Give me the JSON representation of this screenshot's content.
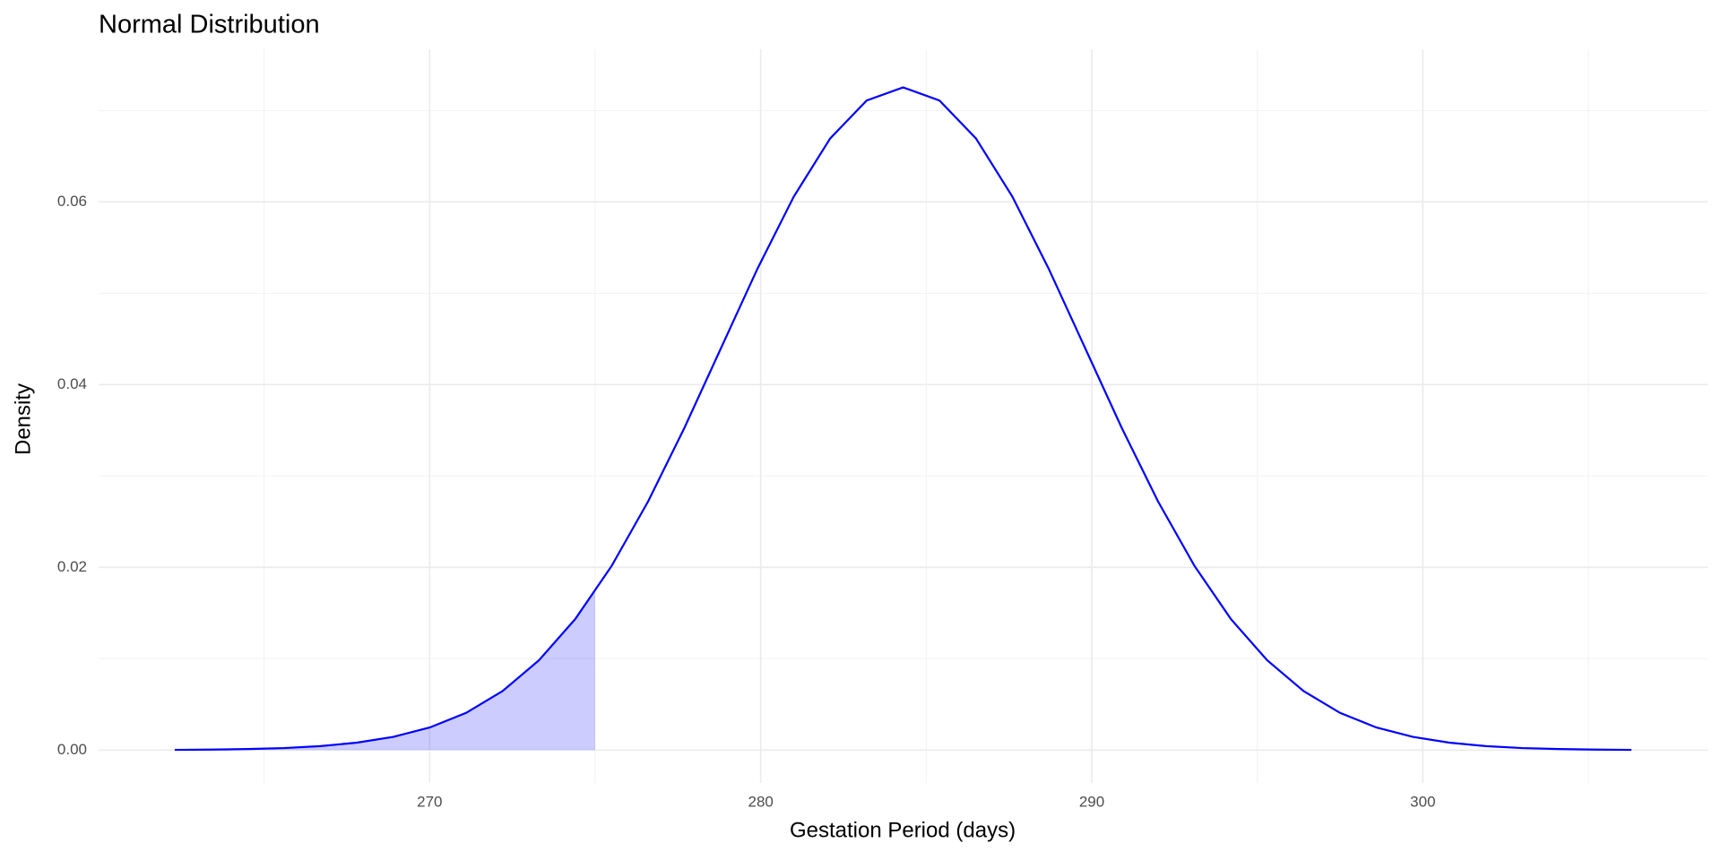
{
  "chart_data": {
    "type": "line",
    "title": "Normal Distribution",
    "xlabel": "Gestation Period (days)",
    "ylabel": "Density",
    "series": [
      {
        "color": "#0000ff",
        "x": [
          262.3,
          263.4,
          264.5,
          265.6,
          266.7,
          267.8,
          268.9,
          270.0,
          271.1,
          272.2,
          273.3,
          274.4,
          275.5,
          276.6,
          277.7,
          278.8,
          279.9,
          281.0,
          282.1,
          283.2,
          284.3,
          285.4,
          286.5,
          287.6,
          288.7,
          289.8,
          290.9,
          292.0,
          293.1,
          294.2,
          295.3,
          296.4,
          297.5,
          298.6,
          299.7,
          300.8,
          301.9,
          303.0,
          304.1,
          305.2,
          306.3
        ],
        "values": [
          2e-05,
          5e-05,
          0.00011,
          0.00022,
          0.00043,
          0.00081,
          0.00144,
          0.00247,
          0.00407,
          0.00645,
          0.00982,
          0.01435,
          0.02017,
          0.02722,
          0.0353,
          0.04399,
          0.05267,
          0.06058,
          0.06695,
          0.07109,
          0.07253,
          0.07109,
          0.06695,
          0.06058,
          0.05267,
          0.04399,
          0.0353,
          0.02722,
          0.02017,
          0.01435,
          0.00982,
          0.00645,
          0.00407,
          0.00247,
          0.00144,
          0.00081,
          0.00043,
          0.00022,
          0.00011,
          5e-05,
          2e-05
        ]
      }
    ],
    "area": {
      "color": "#0000ff",
      "opacity": 0.2,
      "x": [
        262.3,
        263.4,
        264.5,
        265.6,
        266.7,
        267.8,
        268.9,
        270.0,
        271.1,
        272.2,
        273.3,
        274.4,
        275.0
      ],
      "values": [
        2e-05,
        5e-05,
        0.00011,
        0.00022,
        0.00043,
        0.00081,
        0.00144,
        0.00247,
        0.00407,
        0.00645,
        0.00982,
        0.01435,
        0.01736
      ]
    },
    "xlim": [
      260.0,
      308.6
    ],
    "ylim": [
      -0.0036,
      0.0767
    ],
    "xticks": [
      270,
      280,
      290,
      300
    ],
    "yticks": [
      {
        "value": 0,
        "label": "0.00"
      },
      {
        "value": 0.02,
        "label": "0.02"
      },
      {
        "value": 0.04,
        "label": "0.04"
      },
      {
        "value": 0.06,
        "label": "0.06"
      }
    ],
    "xminorticks": [
      265,
      275,
      285,
      295,
      305
    ],
    "yminorticks": [
      0.01,
      0.03,
      0.05,
      0.07
    ],
    "grid": true
  }
}
